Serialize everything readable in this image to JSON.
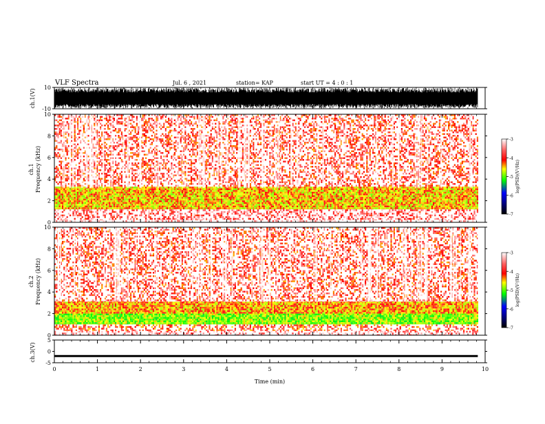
{
  "header": {
    "title": "VLF Spectra",
    "date": "Jul. 6 , 2021",
    "station": "station= KAP",
    "start_ut": "start UT = 4 : 0 : 1"
  },
  "chart_data": {
    "type": "heatmap",
    "x": {
      "label": "Time (min)",
      "range": [
        0,
        10
      ],
      "ticks": [
        "0",
        "1",
        "2",
        "3",
        "4",
        "5",
        "6",
        "7",
        "8",
        "9",
        "10"
      ],
      "data_extent_min": 9.83
    },
    "panels": [
      {
        "kind": "waveform",
        "ylabel": "ch.1(V)",
        "yrange": [
          -10,
          10
        ],
        "yticks": [
          "10",
          "-10"
        ],
        "amplitude_note": "dense broadband signal filling most of range"
      },
      {
        "kind": "spectrogram",
        "ylabel_top": "ch.1",
        "ylabel": "Frequency (kHz)",
        "yrange": [
          0,
          10
        ],
        "yticks": [
          "0",
          "2",
          "4",
          "6",
          "8",
          "10"
        ],
        "bands_khz": [
          {
            "from": 0.0,
            "to": 0.2,
            "level": -3.2
          },
          {
            "from": 0.2,
            "to": 1.2,
            "level": -3.6
          },
          {
            "from": 1.2,
            "to": 3.3,
            "level": -4.3
          },
          {
            "from": 3.3,
            "to": 10.0,
            "level": -3.8
          }
        ]
      },
      {
        "kind": "spectrogram",
        "ylabel_top": "ch.2",
        "ylabel": "Frequency (kHz)",
        "yrange": [
          0,
          10
        ],
        "yticks": [
          "0",
          "2",
          "4",
          "6",
          "8",
          "10"
        ],
        "bands_khz": [
          {
            "from": 0.0,
            "to": 0.4,
            "level": -3.4
          },
          {
            "from": 0.4,
            "to": 1.0,
            "level": -3.9
          },
          {
            "from": 1.0,
            "to": 2.0,
            "level": -4.7
          },
          {
            "from": 2.0,
            "to": 3.1,
            "level": -4.2
          },
          {
            "from": 3.1,
            "to": 10.0,
            "level": -3.8
          }
        ]
      },
      {
        "kind": "waveform",
        "ylabel": "ch.3(V)",
        "yrange": [
          -5,
          5
        ],
        "yticks": [
          "5",
          "0",
          "-5"
        ],
        "amplitude_note": "flat band around -2 V"
      }
    ],
    "colorbar": {
      "label": "log(PSD)(V²/Hz)",
      "range": [
        -7,
        -3
      ],
      "ticks": [
        "-3",
        "-4",
        "-5",
        "-6",
        "-7"
      ],
      "colors": [
        "#ffffff",
        "#ff0000",
        "#ffff00",
        "#00ff00",
        "#0000ff",
        "#000000"
      ]
    }
  }
}
